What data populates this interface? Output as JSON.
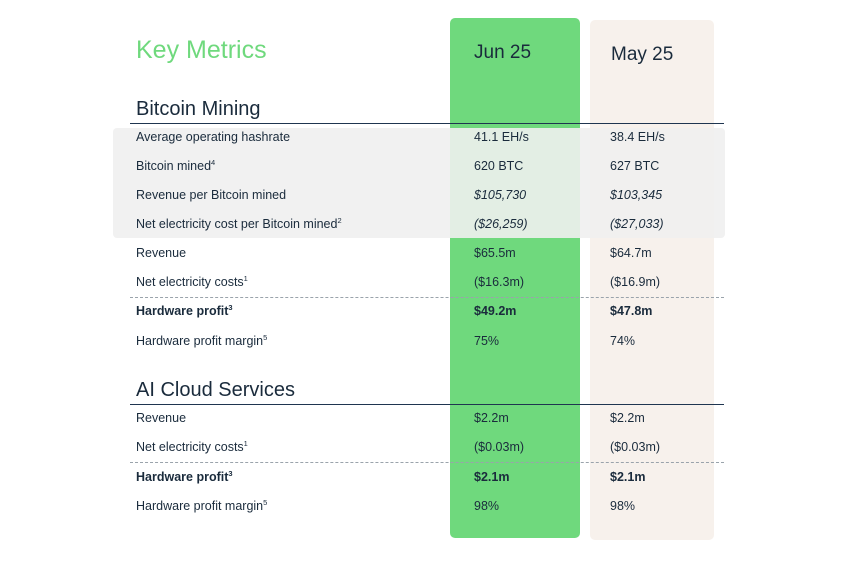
{
  "title": "Key Metrics",
  "columns": {
    "current": "Jun 25",
    "previous": "May 25"
  },
  "bitcoin_mining": {
    "heading": "Bitcoin Mining",
    "rows": [
      {
        "label": "Average operating hashrate",
        "sup": "",
        "jun": "41.1 EH/s",
        "may": "38.4 EH/s"
      },
      {
        "label": "Bitcoin mined",
        "sup": "4",
        "jun": "620 BTC",
        "may": "627 BTC"
      },
      {
        "label": "Revenue per Bitcoin mined",
        "sup": "",
        "jun": "$105,730",
        "may": "$103,345"
      },
      {
        "label": "Net electricity cost per Bitcoin mined",
        "sup": "2",
        "jun": "($26,259)",
        "may": "($27,033)"
      },
      {
        "label": "Revenue",
        "sup": "",
        "jun": "$65.5m",
        "may": "$64.7m"
      },
      {
        "label": "Net electricity costs",
        "sup": "1",
        "jun": "($16.3m)",
        "may": "($16.9m)"
      },
      {
        "label": "Hardware profit",
        "sup": "3",
        "jun": "$49.2m",
        "may": "$47.8m"
      },
      {
        "label": "Hardware profit margin",
        "sup": "5",
        "jun": "75%",
        "may": "74%"
      }
    ]
  },
  "ai_cloud": {
    "heading": "AI Cloud Services",
    "rows": [
      {
        "label": "Revenue",
        "sup": "",
        "jun": "$2.2m",
        "may": "$2.2m"
      },
      {
        "label": "Net electricity costs",
        "sup": "1",
        "jun": "($0.03m)",
        "may": "($0.03m)"
      },
      {
        "label": "Hardware profit",
        "sup": "3",
        "jun": "$2.1m",
        "may": "$2.1m"
      },
      {
        "label": "Hardware profit margin",
        "sup": "5",
        "jun": "98%",
        "may": "98%"
      }
    ]
  }
}
